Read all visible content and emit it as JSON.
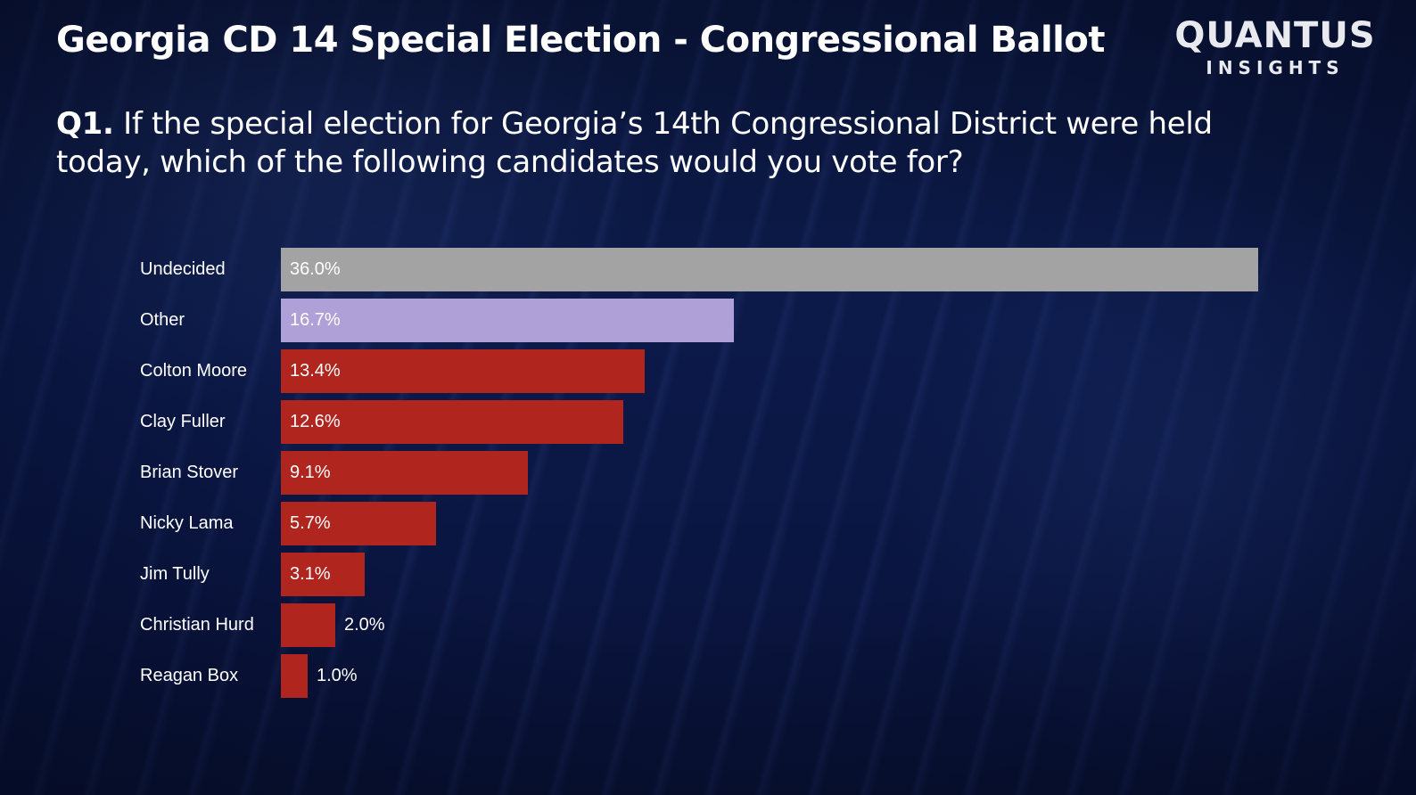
{
  "header": {
    "title": "Georgia CD 14 Special Election - Congressional Ballot",
    "question_number": "Q1.",
    "question_text": " If the special election for Georgia’s 14th Congressional District were held today, which of the following candidates would you vote for?"
  },
  "logo": {
    "main": "QUANTUS",
    "sub": "INSIGHTS"
  },
  "colors": {
    "undecided": "#a3a3a3",
    "other": "#b0a0d8",
    "candidate": "#b0261e",
    "background": "#0b1640"
  },
  "chart_data": {
    "type": "bar",
    "orientation": "horizontal",
    "title": "Georgia CD 14 Special Election - Congressional Ballot",
    "subtitle": "Q1. If the special election for Georgia’s 14th Congressional District were held today, which of the following candidates would you vote for?",
    "xlabel": "",
    "ylabel": "",
    "grid": false,
    "legend": null,
    "categories": [
      "Undecided",
      "Other",
      "Colton Moore",
      "Clay Fuller",
      "Brian Stover",
      "Nicky Lama",
      "Jim Tully",
      "Christian Hurd",
      "Reagan Box"
    ],
    "values": [
      36.0,
      16.7,
      13.4,
      12.6,
      9.1,
      5.7,
      3.1,
      2.0,
      1.0
    ],
    "labels": [
      "36.0%",
      "16.7%",
      "13.4%",
      "12.6%",
      "9.1%",
      "5.7%",
      "3.1%",
      "2.0%",
      "1.0%"
    ],
    "bar_colors": [
      "#a3a3a3",
      "#b0a0d8",
      "#b0261e",
      "#b0261e",
      "#b0261e",
      "#b0261e",
      "#b0261e",
      "#b0261e",
      "#b0261e"
    ],
    "xlim": [
      0,
      36.0
    ]
  }
}
